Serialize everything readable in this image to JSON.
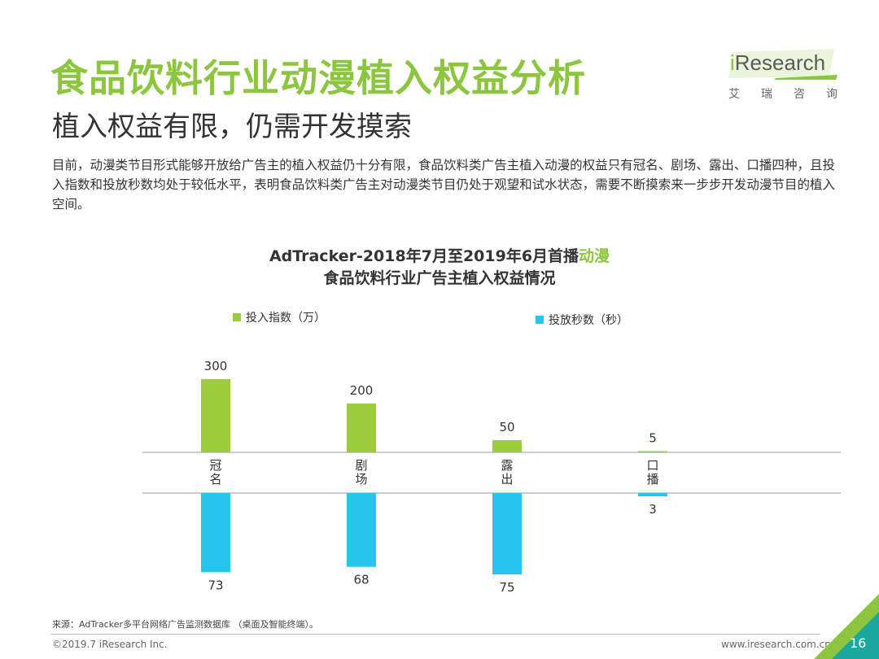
{
  "header": {
    "title": "食品饮料行业动漫植入权益分析",
    "subtitle": "植入权益有限，仍需开发摸索"
  },
  "logo": {
    "brand_i": "i",
    "brand_rest": "Research",
    "tagline": "艾瑞咨询"
  },
  "intro": "目前，动漫类节目形式能够开放给广告主的植入权益仍十分有限，食品饮料类广告主植入动漫的权益只有冠名、剧场、露出、口播四种，且投入指数和投放秒数均处于较低水平，表明食品饮料类广告主对动漫类节目仍处于观望和试水状态，需要不断摸索来一步步开发动漫节目的植入空间。",
  "chart_data": {
    "type": "bar",
    "title_line1_prefix": "AdTracker-2018年7月至2019年6月首播",
    "title_line1_highlight": "动漫",
    "title_line2": "食品饮料行业广告主植入权益情况",
    "categories": [
      "冠名",
      "剧场",
      "露出",
      "口播"
    ],
    "series": [
      {
        "name": "投入指数（万）",
        "color": "#9ccb3b",
        "direction": "up",
        "values": [
          300,
          200,
          50,
          5
        ]
      },
      {
        "name": "投放秒数（秒）",
        "color": "#27c4ee",
        "direction": "down",
        "values": [
          73,
          68,
          75,
          3
        ]
      }
    ]
  },
  "footer": {
    "source": "来源：AdTracker多平台网络广告监测数据库 （桌面及智能终端）。",
    "copyright": "©2019.7 iResearch Inc.",
    "site": "www.iresearch.com.cn",
    "page": "16"
  },
  "colors": {
    "accent_green": "#8cc63e",
    "bar_green": "#9ccb3b",
    "bar_blue": "#27c4ee",
    "corner_teal": "#1aa8a0"
  }
}
